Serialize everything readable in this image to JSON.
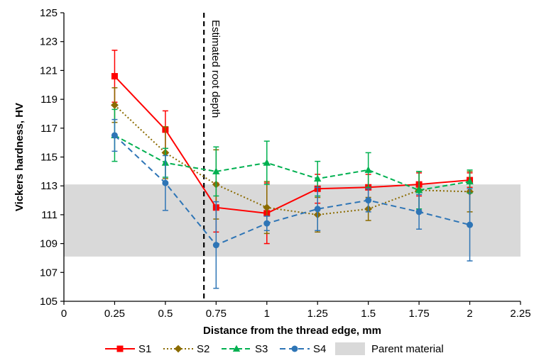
{
  "chart_data": {
    "type": "line",
    "xlabel": "Distance from the thread edge, mm",
    "ylabel": "Vickers hardness, HV",
    "xlim": [
      0,
      2.25
    ],
    "ylim": [
      105,
      125
    ],
    "xticks": [
      "0",
      "0.25",
      "0.5",
      "0.75",
      "1",
      "1.25",
      "1.5",
      "1.75",
      "2",
      "2.25"
    ],
    "yticks": [
      "105",
      "107",
      "109",
      "111",
      "113",
      "115",
      "117",
      "119",
      "121",
      "123",
      "125"
    ],
    "x": [
      0.25,
      0.5,
      0.75,
      1,
      1.25,
      1.5,
      1.75,
      2
    ],
    "band": {
      "name": "Parent material",
      "y_min": 108.1,
      "y_max": 113.1,
      "color": "#d9d9d9"
    },
    "vline": {
      "x": 0.69,
      "label": "Estimated root depth"
    },
    "series": [
      {
        "name": "S1",
        "color": "#ff0000",
        "marker": "square",
        "dash": "",
        "values": [
          120.6,
          116.9,
          111.5,
          111.1,
          112.8,
          112.9,
          113.1,
          113.4
        ],
        "errors": [
          1.8,
          1.3,
          1.7,
          2.1,
          1.0,
          0.9,
          0.8,
          0.5
        ]
      },
      {
        "name": "S2",
        "color": "#8b6b00",
        "marker": "diamond",
        "dash": "2,3",
        "values": [
          118.6,
          115.3,
          113.1,
          111.5,
          111.0,
          111.4,
          112.7,
          112.6
        ],
        "errors": [
          1.2,
          1.8,
          2.4,
          1.8,
          1.2,
          0.8,
          1.3,
          1.4
        ]
      },
      {
        "name": "S3",
        "color": "#00b050",
        "marker": "triangle",
        "dash": "7,4",
        "values": [
          116.5,
          114.6,
          114.0,
          114.6,
          113.5,
          114.1,
          112.7,
          113.3
        ],
        "errors": [
          1.8,
          1.0,
          1.7,
          1.5,
          1.2,
          1.2,
          1.3,
          0.8
        ]
      },
      {
        "name": "S4",
        "color": "#2e75b6",
        "marker": "circle",
        "dash": "8,5",
        "values": [
          116.5,
          113.2,
          108.9,
          110.4,
          111.4,
          112.0,
          111.2,
          110.3
        ],
        "errors": [
          1.1,
          1.9,
          3.0,
          0.5,
          1.5,
          0.8,
          1.2,
          2.5
        ]
      }
    ],
    "legend": {
      "placement": "bottom",
      "entries": [
        "S1",
        "S2",
        "S3",
        "S4",
        "Parent material"
      ]
    }
  }
}
